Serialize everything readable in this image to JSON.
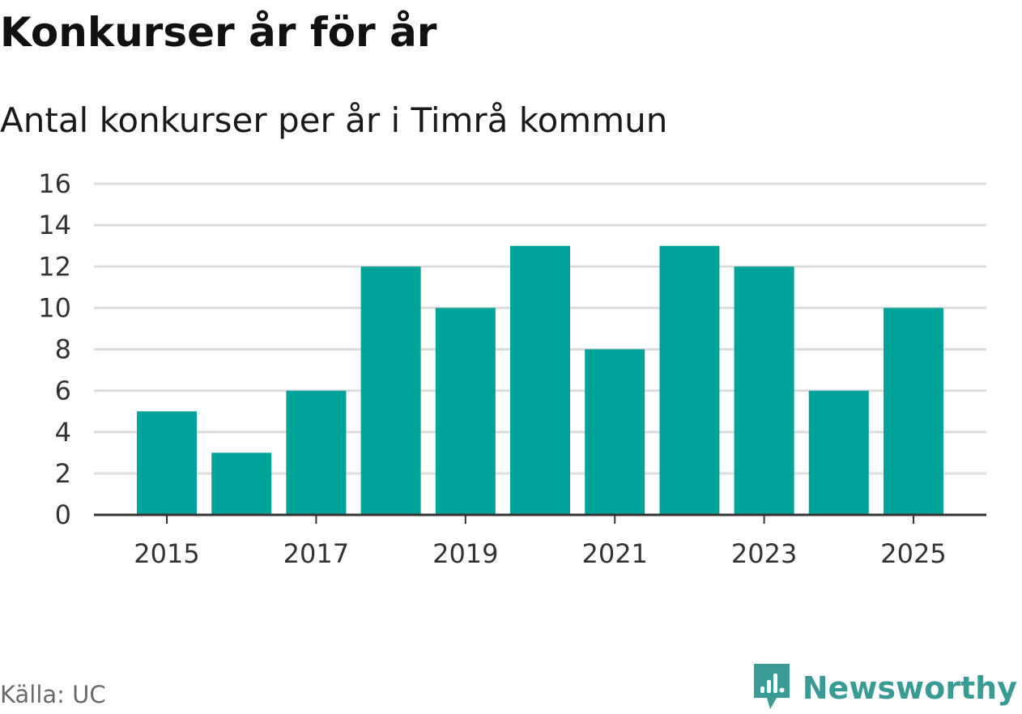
{
  "title": "Konkurser år för år",
  "subtitle": "Antal konkurser per år i Timrå kommun",
  "source": "Källa: UC",
  "brand": {
    "name": "Newsworthy",
    "icon": "newsworthy-logo-icon",
    "color": "#3a9a94"
  },
  "chart_data": {
    "type": "bar",
    "categories": [
      "2015",
      "2016",
      "2017",
      "2018",
      "2019",
      "2020",
      "2021",
      "2022",
      "2023",
      "2024",
      "2025"
    ],
    "values": [
      5,
      3,
      6,
      12,
      10,
      13,
      8,
      13,
      12,
      6,
      10
    ],
    "x_tick_labels": [
      "2015",
      "2017",
      "2019",
      "2021",
      "2023",
      "2025"
    ],
    "y_ticks": [
      0,
      2,
      4,
      6,
      8,
      10,
      12,
      14,
      16
    ],
    "ylim": [
      0,
      16
    ],
    "title": "Konkurser år för år",
    "xlabel": "",
    "ylabel": "",
    "grid": true,
    "legend": "none",
    "bar_color": "#00a39a",
    "grid_color": "#dddddd",
    "axis_color": "#333333"
  }
}
